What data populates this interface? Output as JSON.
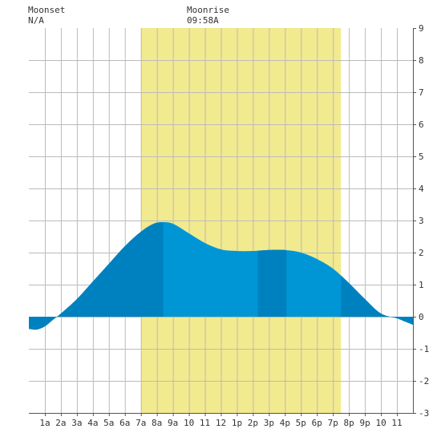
{
  "moonset": {
    "label": "Moonset",
    "value": "N/A"
  },
  "moonrise": {
    "label": "Moonrise",
    "value": "09:58A"
  },
  "colors": {
    "daylight": "#f2ea8e",
    "tide_day": "#0096d6",
    "tide_night": "#0081bf",
    "grid": "#bbbbbb",
    "background": "#ffffff"
  },
  "chart_data": {
    "type": "area",
    "xlabel": "",
    "ylabel": "",
    "xlim": [
      0,
      24
    ],
    "ylim": [
      -3,
      9
    ],
    "grid": true,
    "x_tick_labels": [
      "1a",
      "2a",
      "3a",
      "4a",
      "5a",
      "6a",
      "7a",
      "8a",
      "9a",
      "10",
      "11",
      "12",
      "1p",
      "2p",
      "3p",
      "4p",
      "5p",
      "6p",
      "7p",
      "8p",
      "9p",
      "10",
      "11"
    ],
    "y_tick_labels": [
      "-3",
      "-2",
      "-1",
      "0",
      "1",
      "2",
      "3",
      "4",
      "5",
      "6",
      "7",
      "8",
      "9"
    ],
    "daylight_hours": [
      7,
      19.5
    ],
    "night_bands": [
      [
        0,
        8.4
      ],
      [
        14.3,
        16.1
      ],
      [
        19.5,
        24
      ]
    ],
    "series": [
      {
        "x": [
          0,
          0.5,
          1,
          1.5,
          2,
          3,
          4,
          5,
          6,
          7,
          7.8,
          8.4,
          9,
          10,
          11,
          12,
          13,
          14,
          15,
          16,
          17,
          18,
          19,
          20,
          21,
          22,
          23,
          23.5,
          24
        ],
        "y": [
          -0.38,
          -0.4,
          -0.3,
          -0.1,
          0.1,
          0.55,
          1.1,
          1.65,
          2.2,
          2.65,
          2.9,
          2.95,
          2.9,
          2.6,
          2.3,
          2.1,
          2.05,
          2.05,
          2.08,
          2.08,
          2.0,
          1.8,
          1.5,
          1.05,
          0.55,
          0.1,
          -0.05,
          -0.15,
          -0.25
        ]
      }
    ]
  }
}
